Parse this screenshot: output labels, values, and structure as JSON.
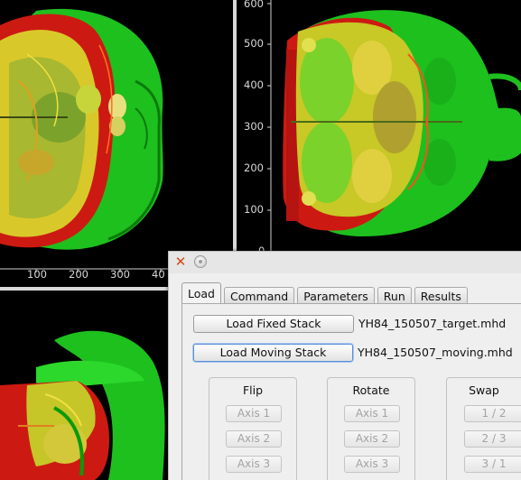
{
  "viewer": {
    "top_left": {
      "x_ticks": [
        "100",
        "200",
        "300",
        "40"
      ]
    },
    "top_right": {
      "y_ticks": [
        "600",
        "500",
        "400",
        "300",
        "200",
        "100",
        "0"
      ]
    }
  },
  "dialog": {
    "tabs": [
      "Load",
      "Command",
      "Parameters",
      "Run",
      "Results"
    ],
    "active_tab": "Load",
    "load_fixed_label": "Load Fixed Stack",
    "fixed_file": "YH84_150507_target.mhd",
    "load_moving_label": "Load Moving Stack",
    "moving_file": "YH84_150507_moving.mhd",
    "flip": {
      "title": "Flip",
      "buttons": [
        "Axis 1",
        "Axis 2",
        "Axis 3"
      ]
    },
    "rotate": {
      "title": "Rotate",
      "buttons": [
        "Axis 1",
        "Axis 2",
        "Axis 3"
      ]
    },
    "swap": {
      "title": "Swap",
      "buttons": [
        "1 / 2",
        "2 / 3",
        "3 / 1"
      ]
    }
  },
  "colors": {
    "fixed_overlay": "#18d418",
    "moving_overlay": "#e01010",
    "overlap": "#e8e020"
  }
}
